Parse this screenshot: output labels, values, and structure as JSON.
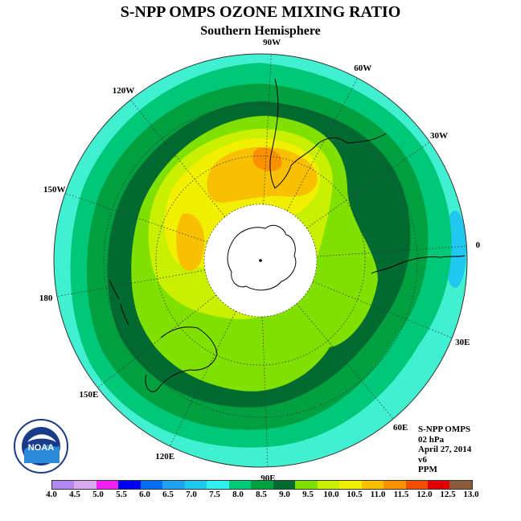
{
  "title": "S-NPP OMPS OZONE MIXING RATIO",
  "subtitle": "Southern Hemisphere",
  "lon_labels": [
    {
      "text": "90W",
      "angle": 3
    },
    {
      "text": "60W",
      "angle": 28
    },
    {
      "text": "30W",
      "angle": 55
    },
    {
      "text": "0",
      "angle": 86
    },
    {
      "text": "30E",
      "angle": 112
    },
    {
      "text": "60E",
      "angle": 140
    },
    {
      "text": "90E",
      "angle": 178
    },
    {
      "text": "120E",
      "angle": 206
    },
    {
      "text": "150E",
      "angle": 232
    },
    {
      "text": "180",
      "angle": 260
    },
    {
      "text": "150W",
      "angle": 289
    },
    {
      "text": "120W",
      "angle": 321
    }
  ],
  "info": {
    "instrument": "S-NPP OMPS",
    "level": "02 hPa",
    "date": "April 27, 2014",
    "version": "v6",
    "units": "PPM"
  },
  "logo": {
    "text": "NOAA",
    "icon": "noaa-logo-icon"
  },
  "colorbar": {
    "ticks": [
      "4.0",
      "4.5",
      "5.0",
      "5.5",
      "6.0",
      "6.5",
      "7.0",
      "7.5",
      "8.0",
      "8.5",
      "9.0",
      "9.5",
      "10.0",
      "10.5",
      "11.0",
      "11.5",
      "12.0",
      "12.5",
      "13.0"
    ],
    "colors": [
      "#b088f0",
      "#d8a8f0",
      "#f020f0",
      "#0000f0",
      "#0070f0",
      "#20a0f0",
      "#20c8f0",
      "#30f0f0",
      "#00c878",
      "#00a040",
      "#006a30",
      "#80e000",
      "#c8f000",
      "#f0f000",
      "#f8c000",
      "#f89000",
      "#f05000",
      "#e00000",
      "#8a5a3a"
    ]
  },
  "map": {
    "ocean_color": "#40f0d0",
    "rings": [
      {
        "level": "8.0-8.5",
        "color": "#00c878"
      },
      {
        "level": "8.5-9.0",
        "color": "#00a040"
      },
      {
        "level": "9.0-9.5",
        "color": "#006a30"
      },
      {
        "level": "9.5-10.0",
        "color": "#80e000"
      },
      {
        "level": "10.0-10.5",
        "color": "#c8f000"
      },
      {
        "level": "10.5-11.0",
        "color": "#f0f000"
      },
      {
        "level": "11.0-11.5",
        "color": "#f8c000"
      },
      {
        "level": "11.5-12.0",
        "color": "#f89000"
      }
    ],
    "low_patch_color": "#20c8f0",
    "no_data_color": "#ffffff"
  }
}
